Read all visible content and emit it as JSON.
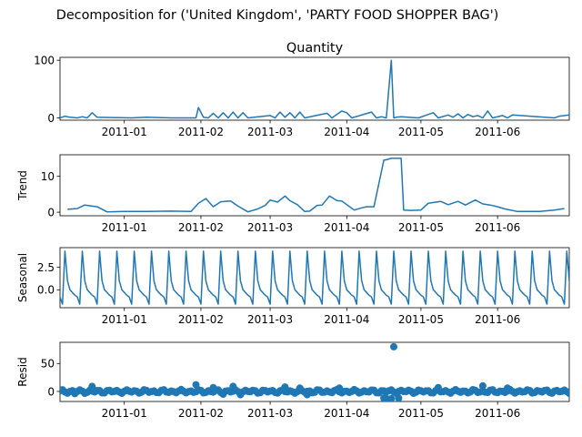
{
  "figure": {
    "suptitle": "Decomposition for ('United Kingdom', 'PARTY FOOD SHOPPER BAG')"
  },
  "chart_data": [
    {
      "type": "line",
      "title": "Quantity",
      "ylabel": "",
      "xlim": [
        "2010-12-06",
        "2011-06-30"
      ],
      "ylim": [
        -4,
        105
      ],
      "x_ticks": [
        "2011-01",
        "2011-02",
        "2011-03",
        "2011-04",
        "2011-05",
        "2011-06"
      ],
      "y_ticks": [
        "0",
        "100"
      ],
      "color": "#1f77b4",
      "x": [
        "2010-12-06",
        "2010-12-08",
        "2010-12-10",
        "2010-12-13",
        "2010-12-15",
        "2010-12-17",
        "2010-12-19",
        "2010-12-21",
        "2011-01-04",
        "2011-01-10",
        "2011-01-20",
        "2011-01-30",
        "2011-01-31",
        "2011-02-02",
        "2011-02-04",
        "2011-02-06",
        "2011-02-08",
        "2011-02-10",
        "2011-02-12",
        "2011-02-14",
        "2011-02-16",
        "2011-02-18",
        "2011-02-20",
        "2011-03-01",
        "2011-03-03",
        "2011-03-05",
        "2011-03-07",
        "2011-03-09",
        "2011-03-11",
        "2011-03-13",
        "2011-03-15",
        "2011-03-24",
        "2011-03-26",
        "2011-03-30",
        "2011-04-01",
        "2011-04-03",
        "2011-04-11",
        "2011-04-13",
        "2011-04-15",
        "2011-04-17",
        "2011-04-19",
        "2011-04-20",
        "2011-04-21",
        "2011-04-23",
        "2011-04-30",
        "2011-05-04",
        "2011-05-06",
        "2011-05-08",
        "2011-05-12",
        "2011-05-14",
        "2011-05-16",
        "2011-05-18",
        "2011-05-20",
        "2011-05-22",
        "2011-05-24",
        "2011-05-26",
        "2011-05-28",
        "2011-05-30",
        "2011-06-03",
        "2011-06-05",
        "2011-06-07",
        "2011-06-24",
        "2011-06-26",
        "2011-06-30"
      ],
      "values": [
        0,
        3,
        1,
        0,
        2,
        0,
        9,
        1,
        0,
        1,
        0,
        0,
        18,
        1,
        0,
        8,
        0,
        9,
        0,
        10,
        0,
        9,
        0,
        4,
        0,
        10,
        1,
        9,
        0,
        10,
        0,
        8,
        0,
        12,
        9,
        0,
        10,
        0,
        2,
        0,
        100,
        0,
        1,
        2,
        0,
        6,
        9,
        0,
        5,
        1,
        7,
        0,
        6,
        2,
        4,
        0,
        12,
        0,
        4,
        0,
        5,
        0,
        3,
        5
      ]
    },
    {
      "type": "line",
      "title": "",
      "ylabel": "Trend",
      "xlim": [
        "2010-12-06",
        "2011-06-30"
      ],
      "ylim": [
        -1,
        16
      ],
      "x_ticks": [
        "2011-01",
        "2011-02",
        "2011-03",
        "2011-04",
        "2011-05",
        "2011-06"
      ],
      "y_ticks": [
        "0",
        "10"
      ],
      "color": "#1f77b4",
      "x": [
        "2010-12-09",
        "2010-12-13",
        "2010-12-16",
        "2010-12-21",
        "2010-12-25",
        "2011-01-01",
        "2011-01-10",
        "2011-01-20",
        "2011-01-28",
        "2011-01-31",
        "2011-02-03",
        "2011-02-06",
        "2011-02-09",
        "2011-02-13",
        "2011-02-16",
        "2011-02-20",
        "2011-02-24",
        "2011-02-27",
        "2011-03-01",
        "2011-03-04",
        "2011-03-07",
        "2011-03-09",
        "2011-03-12",
        "2011-03-15",
        "2011-03-17",
        "2011-03-20",
        "2011-03-22",
        "2011-03-25",
        "2011-03-28",
        "2011-03-30",
        "2011-04-04",
        "2011-04-07",
        "2011-04-09",
        "2011-04-12",
        "2011-04-16",
        "2011-04-17",
        "2011-04-19",
        "2011-04-23",
        "2011-04-24",
        "2011-04-27",
        "2011-05-01",
        "2011-05-04",
        "2011-05-09",
        "2011-05-12",
        "2011-05-16",
        "2011-05-19",
        "2011-05-23",
        "2011-05-26",
        "2011-05-29",
        "2011-06-01",
        "2011-06-04",
        "2011-06-09",
        "2011-06-14",
        "2011-06-18",
        "2011-06-21",
        "2011-06-24",
        "2011-06-26",
        "2011-06-28"
      ],
      "values": [
        0.8,
        1.0,
        2.0,
        1.5,
        0.1,
        0.2,
        0.2,
        0.3,
        0.2,
        2.5,
        3.8,
        1.5,
        2.9,
        3.1,
        1.7,
        0.1,
        0.9,
        1.9,
        3.4,
        2.8,
        4.5,
        3.2,
        2.1,
        0.2,
        0.3,
        1.9,
        2.0,
        4.5,
        3.2,
        3.1,
        0.6,
        1.2,
        1.5,
        1.5,
        14.5,
        14.6,
        15.0,
        15.0,
        0.6,
        0.5,
        0.6,
        2.5,
        3.0,
        2.1,
        3.0,
        2.0,
        3.4,
        2.3,
        2.0,
        1.5,
        0.9,
        0.2,
        0.2,
        0.2,
        0.4,
        0.6,
        0.8,
        1.0
      ]
    },
    {
      "type": "line",
      "title": "",
      "ylabel": "Seasonal",
      "xlim": [
        "2010-12-06",
        "2011-06-30"
      ],
      "ylim": [
        -2.0,
        4.7
      ],
      "x_ticks": [
        "2011-01",
        "2011-02",
        "2011-03",
        "2011-04",
        "2011-05",
        "2011-06"
      ],
      "y_ticks": [
        "0.0",
        "2.5"
      ],
      "color": "#1f77b4",
      "period_days": 7,
      "first_peak": "2010-12-08",
      "weekly_pattern": [
        4.3,
        1.0,
        0.0,
        -0.3,
        -0.6,
        -0.8,
        -1.6
      ]
    },
    {
      "type": "scatter",
      "title": "",
      "ylabel": "Resid",
      "xlim": [
        "2010-12-06",
        "2011-06-30"
      ],
      "ylim": [
        -18,
        88
      ],
      "x_ticks": [
        "2011-01",
        "2011-02",
        "2011-03",
        "2011-04",
        "2011-05",
        "2011-06"
      ],
      "y_ticks": [
        "0",
        "50"
      ],
      "color": "#1f77b4",
      "zero_line": true,
      "x": [
        "2010-12-12",
        "2010-12-19",
        "2011-01-30",
        "2011-02-06",
        "2011-02-10",
        "2011-02-14",
        "2011-03-07",
        "2011-03-13",
        "2011-03-29",
        "2011-04-16",
        "2011-04-17",
        "2011-04-18",
        "2011-04-19",
        "2011-04-20",
        "2011-04-22",
        "2011-05-08",
        "2011-05-26",
        "2011-06-05",
        "2011-02-17",
        "2011-03-16"
      ],
      "values": [
        -4,
        9,
        12,
        7,
        -5,
        9,
        8,
        6,
        6,
        -12,
        -13,
        -14,
        -13,
        80,
        -12,
        7,
        10,
        6,
        -6,
        -6
      ],
      "baseline_noise": "small residuals near 0 for every day"
    }
  ]
}
